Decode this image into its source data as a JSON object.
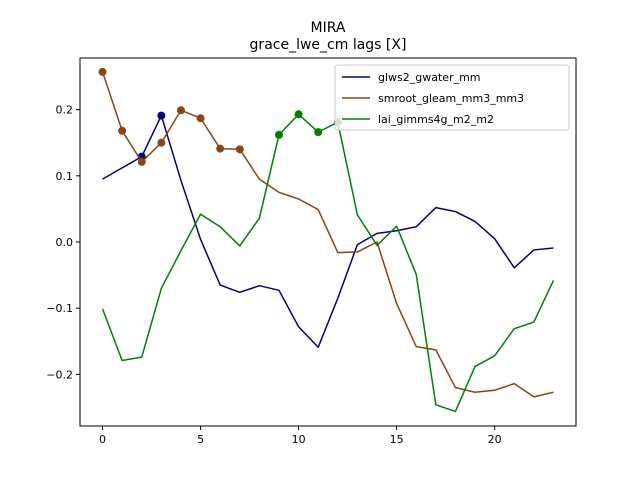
{
  "chart_data": {
    "type": "line",
    "title": "MIRA",
    "subtitle": "grace_lwe_cm lags [X]",
    "xlabel": "",
    "ylabel": "",
    "xlim": [
      -1.15,
      24.15
    ],
    "ylim": [
      -0.278,
      0.278
    ],
    "xticks": [
      0,
      5,
      10,
      15,
      20
    ],
    "xtick_labels": [
      "0",
      "5",
      "10",
      "15",
      "20"
    ],
    "yticks": [
      -0.2,
      -0.1,
      0.0,
      0.1,
      0.2
    ],
    "ytick_labels": [
      "−0.2",
      "−0.1",
      "0.0",
      "0.1",
      "0.2"
    ],
    "grid": false,
    "legend_position": "top-right",
    "x": [
      0,
      1,
      2,
      3,
      4,
      5,
      6,
      7,
      8,
      9,
      10,
      11,
      12,
      13,
      14,
      15,
      16,
      17,
      18,
      19,
      20,
      21,
      22,
      23
    ],
    "series": [
      {
        "name": "glws2_gwater_mm",
        "color": "#00007f",
        "values": [
          0.095,
          0.112,
          0.129,
          0.191,
          0.093,
          0.004,
          -0.065,
          -0.076,
          -0.066,
          -0.073,
          -0.128,
          -0.159,
          -0.085,
          -0.004,
          0.013,
          0.017,
          0.023,
          0.052,
          0.046,
          0.031,
          0.005,
          -0.039,
          -0.012,
          -0.009
        ],
        "markers": [
          2,
          3
        ]
      },
      {
        "name": "smroot_gleam_mm3_mm3",
        "color": "#8b4513",
        "values": [
          0.257,
          0.168,
          0.121,
          0.15,
          0.199,
          0.187,
          0.141,
          0.14,
          0.095,
          0.075,
          0.065,
          0.049,
          -0.016,
          -0.015,
          0.0,
          -0.093,
          -0.158,
          -0.163,
          -0.22,
          -0.227,
          -0.224,
          -0.214,
          -0.234,
          -0.227
        ],
        "markers": [
          0,
          1,
          2,
          3,
          4,
          5,
          6,
          7
        ]
      },
      {
        "name": "lai_gimms4g_m2_m2",
        "color": "#008000",
        "values": [
          -0.101,
          -0.179,
          -0.174,
          -0.07,
          -0.013,
          0.042,
          0.023,
          -0.006,
          0.036,
          0.162,
          0.193,
          0.166,
          0.181,
          0.041,
          -0.005,
          0.024,
          -0.049,
          -0.246,
          -0.256,
          -0.188,
          -0.172,
          -0.131,
          -0.121,
          -0.058
        ],
        "markers": [
          9,
          10,
          11,
          12
        ]
      }
    ]
  }
}
